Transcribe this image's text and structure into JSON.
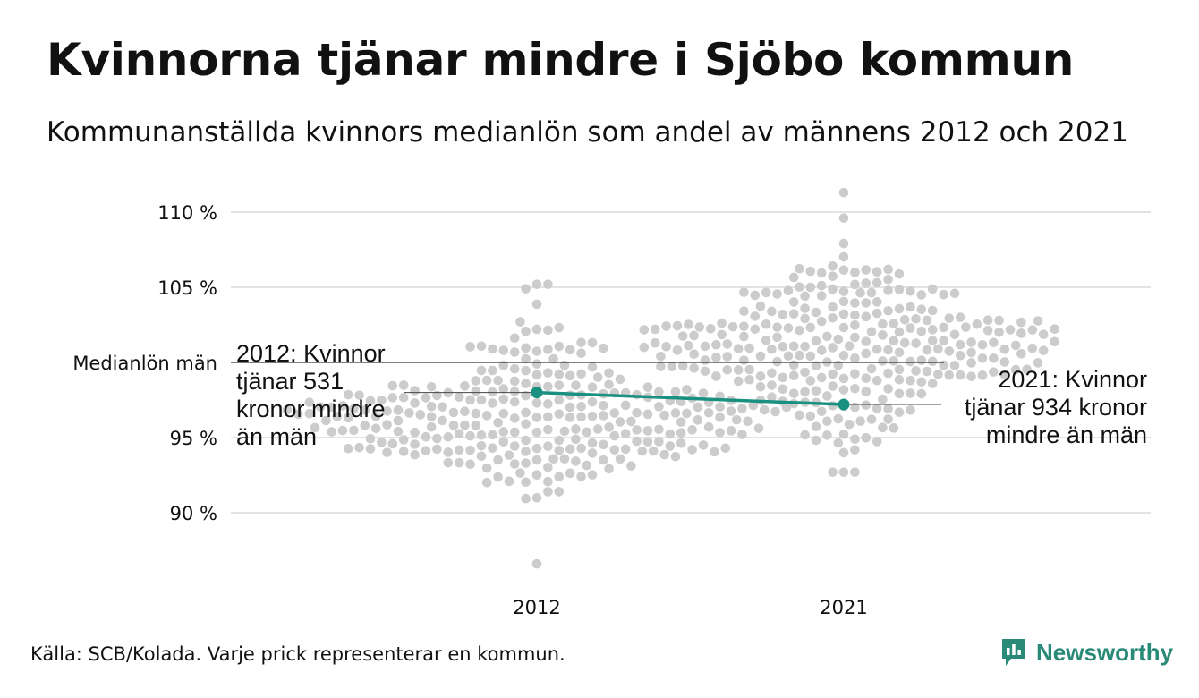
{
  "title": "Kvinnorna tjänar mindre i Sjöbo kommun",
  "subtitle": "Kommunanställda kvinnors medianlön som andel av männens 2012 och 2021",
  "source": "Källa: SCB/Kolada. Varje prick representerar en kommun.",
  "brand": {
    "name": "Newsworthy",
    "icon": "newsworthy-logo-icon",
    "color": "#2a8a78"
  },
  "colors": {
    "dots": "#cccccc",
    "highlight": "#1a9080",
    "grid": "#e3e3e3",
    "reference": "#333333"
  },
  "chart_data": {
    "type": "scatter",
    "subtype": "beeswarm",
    "categories": [
      "2012",
      "2021"
    ],
    "yticks": [
      {
        "value": 90,
        "label": "90 %"
      },
      {
        "value": 95,
        "label": "95 %"
      },
      {
        "value": 105,
        "label": "105 %"
      },
      {
        "value": 110,
        "label": "110 %"
      }
    ],
    "ylim": [
      86.5,
      111.5
    ],
    "grid": true,
    "reference_line": {
      "value": 100,
      "label": "Medianlön män"
    },
    "highlight_series": {
      "points": [
        {
          "x": "2012",
          "y": 98.0
        },
        {
          "x": "2021",
          "y": 97.2
        }
      ]
    },
    "annotations": [
      {
        "x": "2012",
        "lines": [
          "2012: Kvinnor",
          "tjänar 531",
          "kronor mindre",
          "än män"
        ],
        "align": "left"
      },
      {
        "x": "2021",
        "lines": [
          "2021: Kvinnor",
          "tjänar 934 kronor",
          "mindre än män"
        ],
        "align": "right"
      }
    ],
    "distributions": [
      {
        "x": "2012",
        "n": 290,
        "center": 96.3,
        "spread": 2.6,
        "min": 86.6,
        "max": 105.2
      },
      {
        "x": "2021",
        "n": 290,
        "center": 101.3,
        "spread": 2.7,
        "min": 92.7,
        "max": 111.3
      }
    ]
  }
}
